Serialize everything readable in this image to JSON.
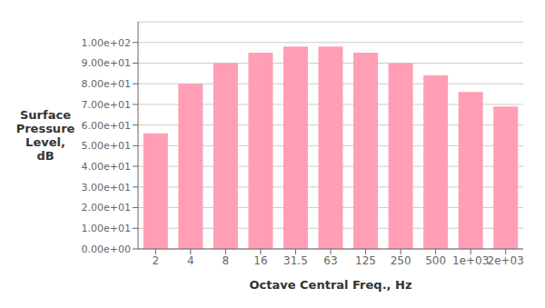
{
  "chart_data": {
    "type": "bar",
    "categories": [
      "2",
      "4",
      "8",
      "16",
      "31.5",
      "63",
      "125",
      "250",
      "500",
      "1e+03",
      "2e+03"
    ],
    "values": [
      56,
      80,
      90,
      95,
      98,
      98,
      95,
      90,
      84,
      76,
      69
    ],
    "color": "#FF9EB5",
    "xlabel": "Octave Central Freq., Hz",
    "ylabel": "Surface\nPressure\nLevel,\ndB",
    "ylim": [
      0,
      110
    ],
    "yticks": [
      {
        "value": 0,
        "label": "0.00e+00"
      },
      {
        "value": 10,
        "label": "1.00e+01"
      },
      {
        "value": 20,
        "label": "2.00e+01"
      },
      {
        "value": 30,
        "label": "3.00e+01"
      },
      {
        "value": 40,
        "label": "4.00e+01"
      },
      {
        "value": 50,
        "label": "5.00e+01"
      },
      {
        "value": 60,
        "label": "6.00e+01"
      },
      {
        "value": 70,
        "label": "7.00e+01"
      },
      {
        "value": 80,
        "label": "8.00e+01"
      },
      {
        "value": 90,
        "label": "9.00e+01"
      },
      {
        "value": 100,
        "label": "1.00e+02"
      }
    ],
    "grid": true
  }
}
